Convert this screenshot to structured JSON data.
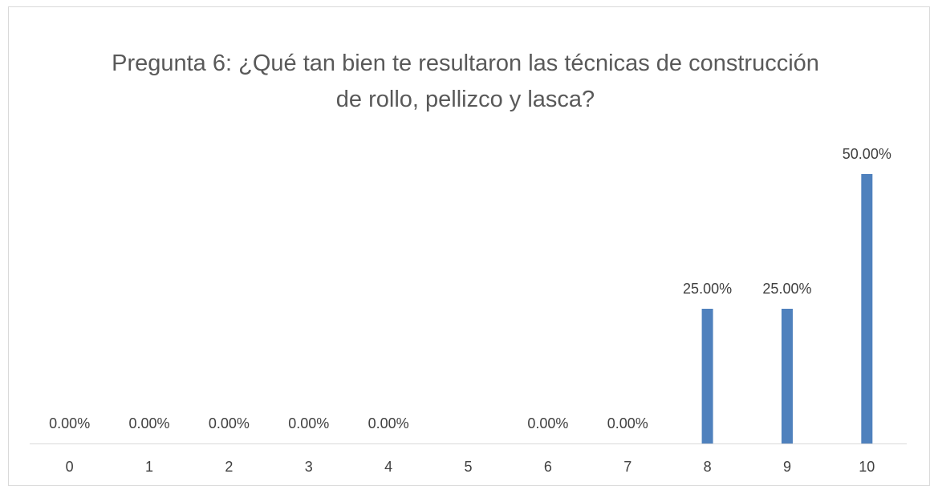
{
  "chart_data": {
    "type": "bar",
    "title": "Pregunta 6: ¿Qué tan bien te resultaron las técnicas de construcción de rollo, pellizco y lasca?",
    "categories": [
      "0",
      "1",
      "2",
      "3",
      "4",
      "5",
      "6",
      "7",
      "8",
      "9",
      "10"
    ],
    "values": [
      0,
      0,
      0,
      0,
      0,
      null,
      0,
      0,
      25,
      25,
      50
    ],
    "value_labels": [
      "0.00%",
      "0.00%",
      "0.00%",
      "0.00%",
      "0.00%",
      null,
      "0.00%",
      "0.00%",
      "25.00%",
      "25.00%",
      "50.00%"
    ],
    "color": "#4f81bd"
  }
}
